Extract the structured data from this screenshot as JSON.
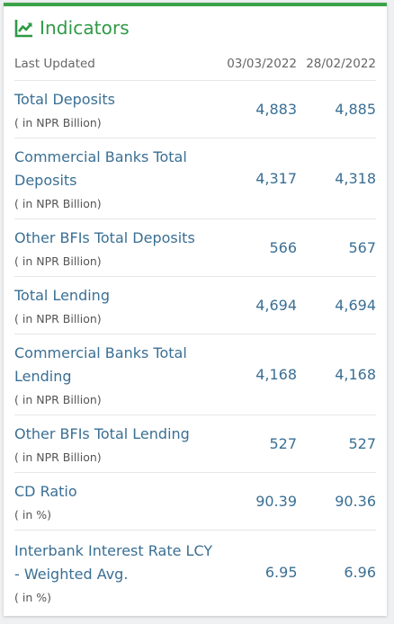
{
  "header": {
    "title": "Indicators",
    "icon": "line-chart-icon",
    "accent_color": "#3aa34a"
  },
  "columns": {
    "label": "Last Updated",
    "date1": "03/03/2022",
    "date2": "28/02/2022"
  },
  "rows": [
    {
      "name": "Total Deposits",
      "unit": "( in NPR Billion)",
      "v1": "4,883",
      "v2": "4,885"
    },
    {
      "name": "Commercial Banks Total Deposits",
      "unit": "( in NPR Billion)",
      "v1": "4,317",
      "v2": "4,318"
    },
    {
      "name": "Other BFIs Total Deposits",
      "unit": "( in NPR Billion)",
      "v1": "566",
      "v2": "567"
    },
    {
      "name": "Total Lending",
      "unit": "( in NPR Billion)",
      "v1": "4,694",
      "v2": "4,694"
    },
    {
      "name": "Commercial Banks Total Lending",
      "unit": "( in NPR Billion)",
      "v1": "4,168",
      "v2": "4,168"
    },
    {
      "name": "Other BFIs Total Lending",
      "unit": "( in NPR Billion)",
      "v1": "527",
      "v2": "527"
    },
    {
      "name": "CD Ratio",
      "unit": "( in %)",
      "v1": "90.39",
      "v2": "90.36"
    },
    {
      "name": "Interbank Interest Rate LCY - Weighted Avg.",
      "unit": "( in %)",
      "v1": "6.95",
      "v2": "6.96"
    }
  ]
}
